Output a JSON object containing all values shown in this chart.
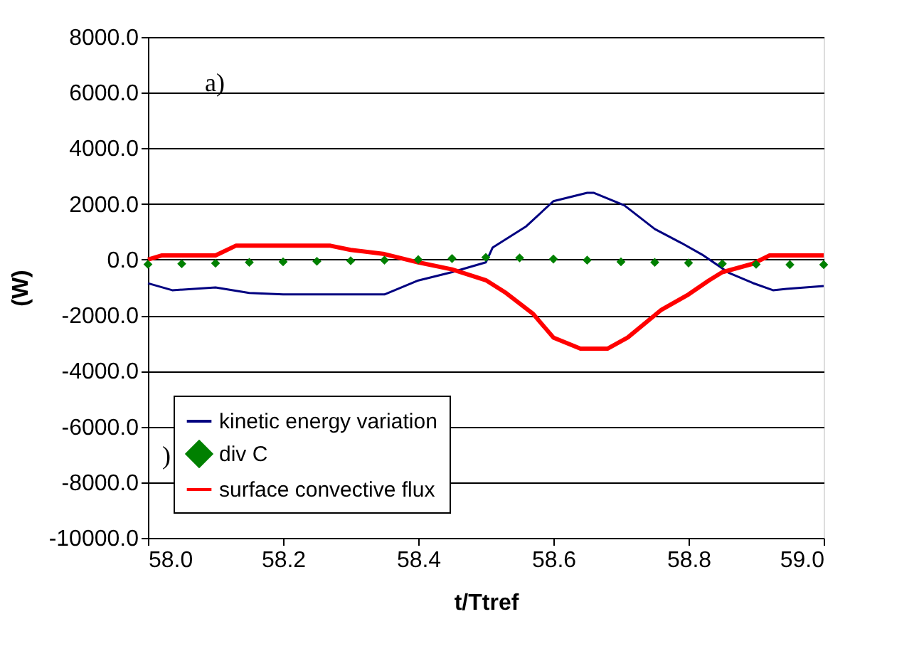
{
  "chart_data": {
    "type": "line",
    "xlabel": "t/Ttref",
    "ylabel": "(W)",
    "annotations": [
      "a)",
      ")"
    ],
    "xlim": [
      58.0,
      59.0
    ],
    "xticks": [
      {
        "value": 58.0,
        "label": "58.0"
      },
      {
        "value": 58.2,
        "label": "58.2"
      },
      {
        "value": 58.4,
        "label": "58.4"
      },
      {
        "value": 58.6,
        "label": "58.6"
      },
      {
        "value": 58.8,
        "label": "58.8"
      },
      {
        "value": 59.0,
        "label": "59.0"
      }
    ],
    "ylim": [
      -10000,
      8000
    ],
    "yticks": [
      {
        "value": -10000,
        "label": "-10000.0"
      },
      {
        "value": -8000,
        "label": "-8000.0"
      },
      {
        "value": -6000,
        "label": "-6000.0"
      },
      {
        "value": -4000,
        "label": "-4000.0"
      },
      {
        "value": -2000,
        "label": "-2000.0"
      },
      {
        "value": 0,
        "label": "0.0"
      },
      {
        "value": 2000,
        "label": "2000.0"
      },
      {
        "value": 4000,
        "label": "4000.0"
      },
      {
        "value": 6000,
        "label": "6000.0"
      },
      {
        "value": 8000,
        "label": "8000.0"
      }
    ],
    "grid": "y",
    "legend": "bottom left",
    "series": [
      {
        "name": "kinetic energy variation",
        "color": "#000080",
        "x": [
          58.0,
          58.036,
          58.1,
          58.15,
          58.2,
          58.35,
          58.4,
          58.45,
          58.5,
          58.51,
          58.56,
          58.6,
          58.65,
          58.66,
          58.705,
          58.75,
          58.79,
          58.82,
          58.86,
          58.895,
          58.925,
          58.945,
          59.0
        ],
        "values": [
          -850,
          -1100,
          -1000,
          -1200,
          -1250,
          -1250,
          -750,
          -450,
          -100,
          430,
          1200,
          2100,
          2400,
          2400,
          1950,
          1100,
          590,
          180,
          -480,
          -840,
          -1100,
          -1050,
          -950
        ]
      },
      {
        "name": "div C",
        "color": "#008000",
        "type": "scatter",
        "marker": "diamond",
        "x": [
          58.0,
          58.05,
          58.1,
          58.15,
          58.2,
          58.25,
          58.3,
          58.35,
          58.4,
          58.45,
          58.5,
          58.55,
          58.6,
          58.65,
          58.7,
          58.75,
          58.8,
          58.85,
          58.9,
          58.95,
          59.0
        ],
        "values": [
          -170,
          -150,
          -130,
          -100,
          -80,
          -60,
          -40,
          -20,
          0,
          40,
          80,
          60,
          20,
          -20,
          -80,
          -100,
          -120,
          -150,
          -170,
          -180,
          -180
        ]
      },
      {
        "name": "surface convective flux",
        "color": "#ff0000",
        "x": [
          58.0,
          58.02,
          58.06,
          58.1,
          58.13,
          58.27,
          58.3,
          58.35,
          58.4,
          58.45,
          58.5,
          58.53,
          58.57,
          58.6,
          58.64,
          58.68,
          58.71,
          58.76,
          58.8,
          58.83,
          58.85,
          58.895,
          58.92,
          59.0
        ],
        "values": [
          0,
          150,
          150,
          150,
          500,
          500,
          350,
          200,
          -100,
          -350,
          -740,
          -1200,
          -1950,
          -2800,
          -3200,
          -3200,
          -2800,
          -1800,
          -1250,
          -750,
          -450,
          -150,
          150,
          150
        ]
      }
    ]
  }
}
